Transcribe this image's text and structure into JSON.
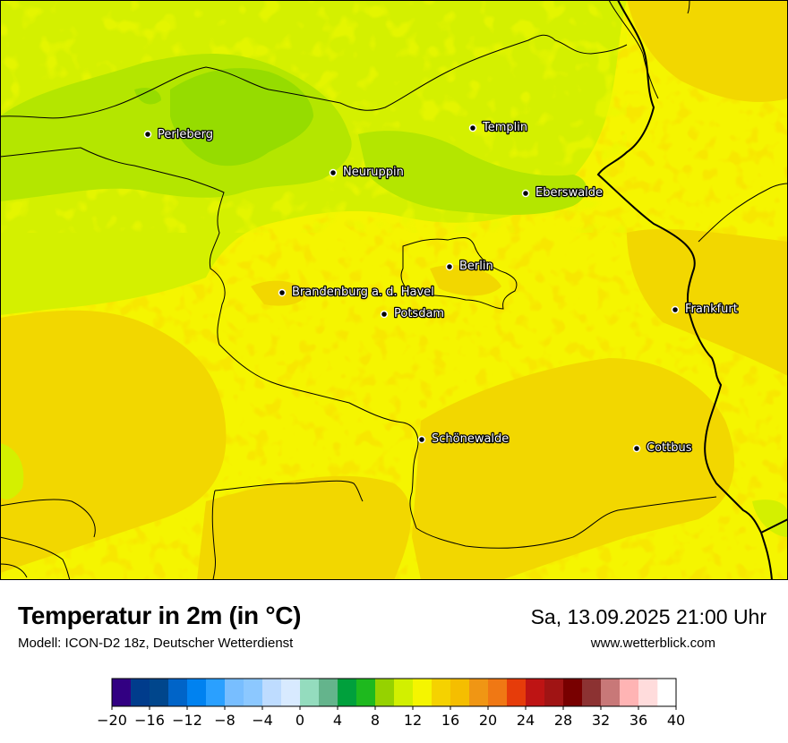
{
  "map": {
    "cities": [
      {
        "name": "Perleberg"
      },
      {
        "name": "Templin"
      },
      {
        "name": "Neuruppin"
      },
      {
        "name": "Eberswalde"
      },
      {
        "name": "Berlin"
      },
      {
        "name": "Brandenburg a. d. Havel"
      },
      {
        "name": "Potsdam"
      },
      {
        "name": "Frankfurt"
      },
      {
        "name": "Schönewalde"
      },
      {
        "name": "Cottbus"
      }
    ]
  },
  "header": {
    "title": "Temperatur in 2m (in °C)",
    "subtitle": "Modell: ICON-D2 18z, Deutscher Wetterdienst",
    "datetime": "Sa, 13.09.2025 21:00 Uhr",
    "website": "www.wetterblick.com"
  },
  "scale": {
    "min": -20,
    "max": 40,
    "step": 2,
    "tick_labels": [
      "−20",
      "−16",
      "−12",
      "−8",
      "−4",
      "0",
      "4",
      "8",
      "12",
      "16",
      "20",
      "24",
      "28",
      "32",
      "36",
      "40"
    ],
    "colors": [
      "#320082",
      "#003c8c",
      "#00468c",
      "#0064c8",
      "#0082f0",
      "#2aa0ff",
      "#78beff",
      "#8cc8ff",
      "#bedcff",
      "#d8eaff",
      "#94dcbe",
      "#64b48c",
      "#00a03c",
      "#1eb91e",
      "#96d200",
      "#d2f000",
      "#f5f500",
      "#f5d200",
      "#f5be00",
      "#f09614",
      "#f07814",
      "#e63c0a",
      "#be1414",
      "#a01414",
      "#780000",
      "#8c3232",
      "#c87878",
      "#ffb4b4",
      "#ffdcdc"
    ]
  }
}
